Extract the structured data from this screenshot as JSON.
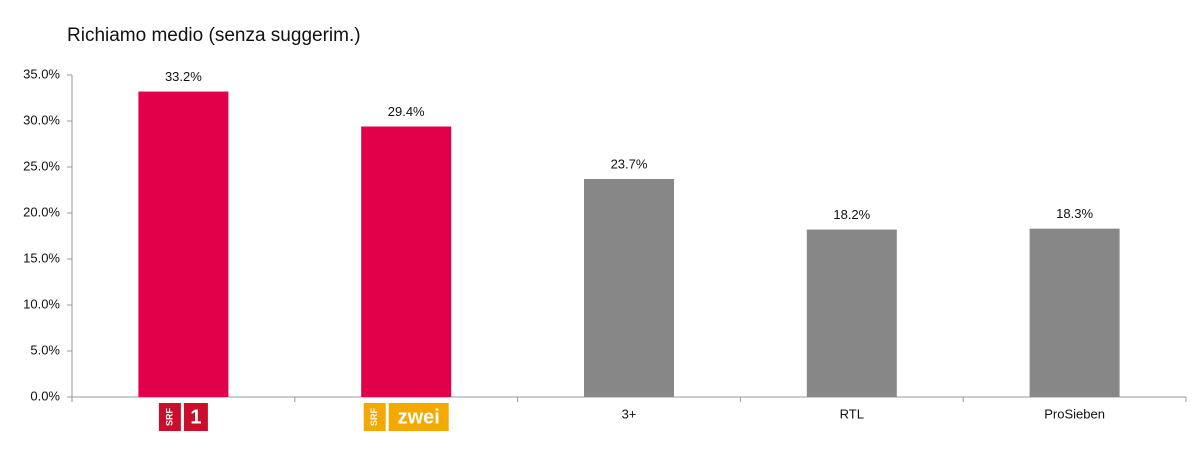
{
  "chart_data": {
    "type": "bar",
    "title": "Richiamo medio (senza suggerim.)",
    "categories": [
      null,
      null,
      "3+",
      "RTL",
      "ProSieben"
    ],
    "logos": [
      {
        "badge": "SRF",
        "text": "1",
        "color": "#c8102e"
      },
      {
        "badge": "SRF",
        "text": "zwei",
        "color": "#f5a800"
      }
    ],
    "values": [
      33.2,
      29.4,
      23.7,
      18.2,
      18.3
    ],
    "value_labels": [
      "33.2%",
      "29.4%",
      "23.7%",
      "18.2%",
      "18.3%"
    ],
    "colors": [
      "#e2004a",
      "#e2004a",
      "#878787",
      "#878787",
      "#878787"
    ],
    "ylim": [
      0,
      35
    ],
    "yticks": [
      {
        "value": 0,
        "label": "0.0%"
      },
      {
        "value": 5,
        "label": "5.0%"
      },
      {
        "value": 10,
        "label": "10.0%"
      },
      {
        "value": 15,
        "label": "15.0%"
      },
      {
        "value": 20,
        "label": "20.0%"
      },
      {
        "value": 25,
        "label": "25.0%"
      },
      {
        "value": 30,
        "label": "30.0%"
      },
      {
        "value": 35,
        "label": "35.0%"
      }
    ],
    "grid": false
  }
}
